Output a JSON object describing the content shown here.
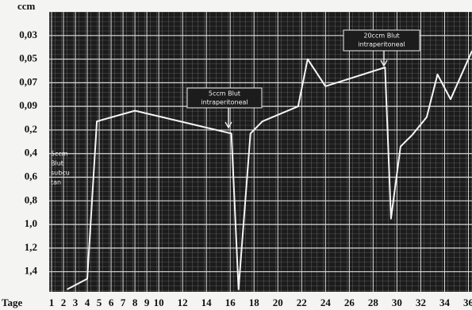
{
  "chart_data": {
    "type": "line",
    "y_unit_label": "ccm",
    "x_label": "Tage",
    "x": [
      2.3,
      4,
      4.8,
      8,
      16.1,
      16.7,
      17.7,
      18.7,
      21.7,
      22.5,
      24,
      29,
      29.5,
      30.3,
      31.3,
      32.5,
      33.4,
      34.5,
      36.3
    ],
    "values": [
      1.55,
      1.46,
      0.16,
      0.11,
      0.23,
      1.55,
      0.23,
      0.16,
      0.09,
      0.05,
      0.073,
      0.057,
      0.95,
      0.34,
      0.24,
      0.14,
      0.063,
      0.084,
      0.043
    ],
    "color": "#f5f5f5",
    "xlim": [
      0.8,
      36.3
    ],
    "xticks": [
      1,
      2,
      3,
      4,
      5,
      6,
      7,
      8,
      9,
      10,
      12,
      14,
      16,
      18,
      20,
      22,
      24,
      26,
      28,
      30,
      32,
      34,
      36
    ],
    "ylim": [
      0.01,
      1.57
    ],
    "y_reversed": true,
    "y_scale": "tick-spaced",
    "yticks": [
      {
        "value": 0.03,
        "label": "0,03"
      },
      {
        "value": 0.05,
        "label": "0,05"
      },
      {
        "value": 0.07,
        "label": "0,07"
      },
      {
        "value": 0.09,
        "label": "0,09"
      },
      {
        "value": 0.2,
        "label": "0,2"
      },
      {
        "value": 0.4,
        "label": "0,4"
      },
      {
        "value": 0.6,
        "label": "0,6"
      },
      {
        "value": 0.8,
        "label": "0,8"
      },
      {
        "value": 1.0,
        "label": "1,0"
      },
      {
        "value": 1.2,
        "label": "1,2"
      },
      {
        "value": 1.4,
        "label": "1,4"
      }
    ],
    "grid": true,
    "annotations": [
      {
        "lines": [
          "5ccm",
          "Blut",
          "subcu",
          "tan"
        ]
      },
      {
        "lines": [
          "5ccm Blut",
          "intraperitoneal"
        ]
      },
      {
        "lines": [
          "20ccm Blut",
          "intraperitoneal"
        ]
      }
    ]
  }
}
